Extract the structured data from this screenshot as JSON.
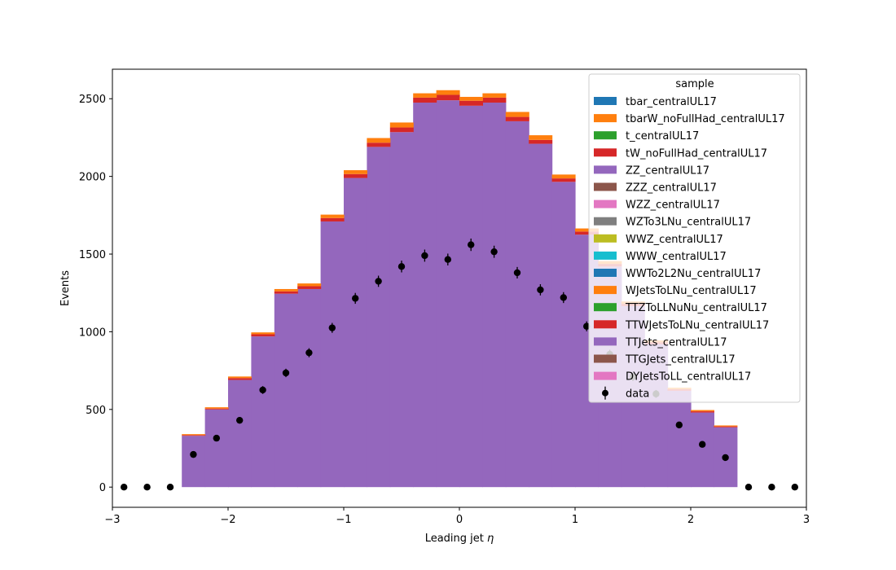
{
  "chart_data": {
    "type": "bar",
    "subtype": "stacked-histogram-with-data-points",
    "xlabel": "Leading jet",
    "xlabel_symbol": "η",
    "ylabel": "Events",
    "xlim": [
      -3,
      3
    ],
    "ylim": [
      -130,
      2690
    ],
    "xticks": [
      -3,
      -2,
      -1,
      0,
      1,
      2,
      3
    ],
    "xtick_labels": [
      "−3",
      "−2",
      "−1",
      "0",
      "1",
      "2",
      "3"
    ],
    "yticks": [
      0,
      500,
      1000,
      1500,
      2000,
      2500
    ],
    "ytick_labels": [
      "0",
      "500",
      "1000",
      "1500",
      "2000",
      "2500"
    ],
    "grid": false,
    "legend": {
      "title": "sample",
      "placement": "top-right"
    },
    "bin_edges": [
      -2.4,
      -2.2,
      -2.0,
      -1.8,
      -1.6,
      -1.4,
      -1.2,
      -1.0,
      -0.8,
      -0.6,
      -0.4,
      -0.2,
      0.0,
      0.2,
      0.4,
      0.6,
      0.8,
      1.0,
      1.2,
      1.4,
      1.6,
      1.8,
      2.0,
      2.2,
      2.4
    ],
    "series": [
      {
        "name": "tbar_centralUL17",
        "color": "#1f77b4",
        "values": [
          0,
          0,
          0,
          0,
          0,
          0,
          0,
          0,
          0,
          0,
          0,
          0,
          0,
          0,
          0,
          0,
          0,
          0,
          0,
          0,
          0,
          0,
          0,
          0
        ]
      },
      {
        "name": "tbarW_noFullHad_centralUL17",
        "color": "#ff7f0e",
        "values": [
          0,
          0,
          0,
          0,
          0,
          0,
          0,
          0,
          0,
          0,
          0,
          0,
          0,
          0,
          0,
          0,
          0,
          0,
          0,
          0,
          0,
          0,
          0,
          0
        ]
      },
      {
        "name": "t_centralUL17",
        "color": "#2ca02c",
        "values": [
          0,
          0,
          0,
          0,
          0,
          0,
          0,
          0,
          0,
          0,
          0,
          0,
          0,
          0,
          0,
          0,
          0,
          0,
          0,
          0,
          0,
          0,
          0,
          0
        ]
      },
      {
        "name": "tW_noFullHad_centralUL17",
        "color": "#d62728",
        "values": [
          0,
          0,
          0,
          0,
          0,
          0,
          0,
          0,
          0,
          0,
          0,
          0,
          0,
          0,
          0,
          0,
          0,
          0,
          0,
          0,
          0,
          0,
          0,
          0
        ]
      },
      {
        "name": "ZZ_centralUL17",
        "color": "#9467bd",
        "values": [
          0,
          0,
          0,
          0,
          0,
          0,
          0,
          0,
          0,
          0,
          0,
          0,
          0,
          0,
          0,
          0,
          0,
          0,
          0,
          0,
          0,
          0,
          0,
          0
        ]
      },
      {
        "name": "ZZZ_centralUL17",
        "color": "#8c564b",
        "values": [
          0,
          0,
          0,
          0,
          0,
          0,
          0,
          0,
          0,
          0,
          0,
          0,
          0,
          0,
          0,
          0,
          0,
          0,
          0,
          0,
          0,
          0,
          0,
          0
        ]
      },
      {
        "name": "WZZ_centralUL17",
        "color": "#e377c2",
        "values": [
          0,
          0,
          0,
          0,
          0,
          0,
          0,
          0,
          0,
          0,
          0,
          0,
          0,
          0,
          0,
          0,
          0,
          0,
          0,
          0,
          0,
          0,
          0,
          0
        ]
      },
      {
        "name": "WZTo3LNu_centralUL17",
        "color": "#7f7f7f",
        "values": [
          0,
          0,
          0,
          0,
          0,
          0,
          0,
          0,
          0,
          0,
          0,
          0,
          0,
          0,
          0,
          0,
          0,
          0,
          0,
          0,
          0,
          0,
          0,
          0
        ]
      },
      {
        "name": "WWZ_centralUL17",
        "color": "#bcbd22",
        "values": [
          0,
          0,
          0,
          0,
          0,
          0,
          0,
          0,
          0,
          0,
          0,
          0,
          0,
          0,
          0,
          0,
          0,
          0,
          0,
          0,
          0,
          0,
          0,
          0
        ]
      },
      {
        "name": "WWW_centralUL17",
        "color": "#17becf",
        "values": [
          0,
          0,
          0,
          0,
          0,
          0,
          0,
          0,
          0,
          0,
          0,
          0,
          0,
          0,
          0,
          0,
          0,
          0,
          0,
          0,
          0,
          0,
          0,
          0
        ]
      },
      {
        "name": "WWTo2L2Nu_centralUL17",
        "color": "#1f77b4",
        "values": [
          0,
          0,
          0,
          0,
          0,
          0,
          0,
          0,
          0,
          0,
          0,
          0,
          0,
          0,
          0,
          0,
          0,
          0,
          0,
          0,
          0,
          0,
          0,
          0
        ]
      },
      {
        "name": "WJetsToLNu_centralUL17",
        "color": "#ff7f0e",
        "values": [
          0,
          0,
          0,
          0,
          0,
          0,
          0,
          0,
          0,
          0,
          0,
          0,
          0,
          0,
          0,
          0,
          0,
          0,
          0,
          0,
          0,
          0,
          0,
          0
        ]
      },
      {
        "name": "TTZToLLNuNu_centralUL17",
        "color": "#2ca02c",
        "values": [
          0,
          0,
          0,
          0,
          0,
          0,
          0,
          0,
          0,
          0,
          0,
          0,
          0,
          0,
          0,
          0,
          0,
          0,
          0,
          0,
          0,
          0,
          0,
          0
        ]
      },
      {
        "name": "TTWJetsToLNu_centralUL17",
        "color": "#d62728",
        "values": [
          0,
          0,
          0,
          0,
          0,
          0,
          0,
          0,
          0,
          0,
          0,
          0,
          0,
          0,
          0,
          0,
          0,
          0,
          0,
          0,
          0,
          0,
          0,
          0
        ]
      },
      {
        "name": "TTJets_centralUL17",
        "color": "#9467bd",
        "values": [
          330,
          500,
          690,
          970,
          1245,
          1275,
          1710,
          1990,
          2190,
          2285,
          2475,
          2490,
          2455,
          2475,
          2355,
          2210,
          1965,
          1625,
          1420,
          1165,
          920,
          620,
          480,
          385
        ]
      },
      {
        "name": "TTGJets_centralUL17",
        "color": "#8c564b",
        "values": [
          0,
          0,
          0,
          0,
          0,
          0,
          0,
          0,
          0,
          0,
          0,
          0,
          0,
          0,
          0,
          0,
          0,
          0,
          0,
          0,
          0,
          0,
          0,
          0
        ]
      },
      {
        "name": "DYJetsToLL_centralUL17",
        "color": "#e377c2",
        "values": [
          0,
          0,
          0,
          0,
          0,
          0,
          0,
          0,
          0,
          0,
          0,
          0,
          0,
          0,
          0,
          0,
          0,
          0,
          0,
          0,
          0,
          0,
          0,
          0
        ]
      }
    ],
    "extra_layers": [
      {
        "color": "#d62728",
        "values": [
          5,
          6,
          12,
          14,
          15,
          18,
          22,
          25,
          27,
          30,
          32,
          35,
          32,
          32,
          28,
          25,
          22,
          20,
          17,
          15,
          12,
          10,
          8,
          6
        ]
      },
      {
        "color": "#ff7f0e",
        "values": [
          6,
          8,
          10,
          12,
          15,
          18,
          22,
          25,
          30,
          32,
          28,
          30,
          25,
          28,
          32,
          30,
          25,
          20,
          18,
          15,
          12,
          10,
          8,
          6
        ]
      }
    ],
    "data_points": {
      "name": "data",
      "x": [
        -2.9,
        -2.7,
        -2.5,
        -2.3,
        -2.1,
        -1.9,
        -1.7,
        -1.5,
        -1.3,
        -1.1,
        -0.9,
        -0.7,
        -0.5,
        -0.3,
        -0.1,
        0.1,
        0.3,
        0.5,
        0.7,
        0.9,
        1.1,
        1.3,
        1.5,
        1.7,
        1.9,
        2.1,
        2.3,
        2.5,
        2.7,
        2.9
      ],
      "y": [
        0,
        0,
        0,
        210,
        315,
        430,
        625,
        735,
        865,
        1025,
        1215,
        1325,
        1420,
        1490,
        1465,
        1560,
        1515,
        1380,
        1270,
        1220,
        1035,
        855,
        710,
        600,
        400,
        275,
        190,
        0,
        0,
        0
      ],
      "yerr": [
        0,
        0,
        0,
        15,
        18,
        21,
        25,
        27,
        29,
        32,
        35,
        36,
        38,
        39,
        38,
        40,
        39,
        37,
        36,
        35,
        32,
        29,
        27,
        25,
        20,
        17,
        14,
        0,
        0,
        0
      ]
    }
  }
}
